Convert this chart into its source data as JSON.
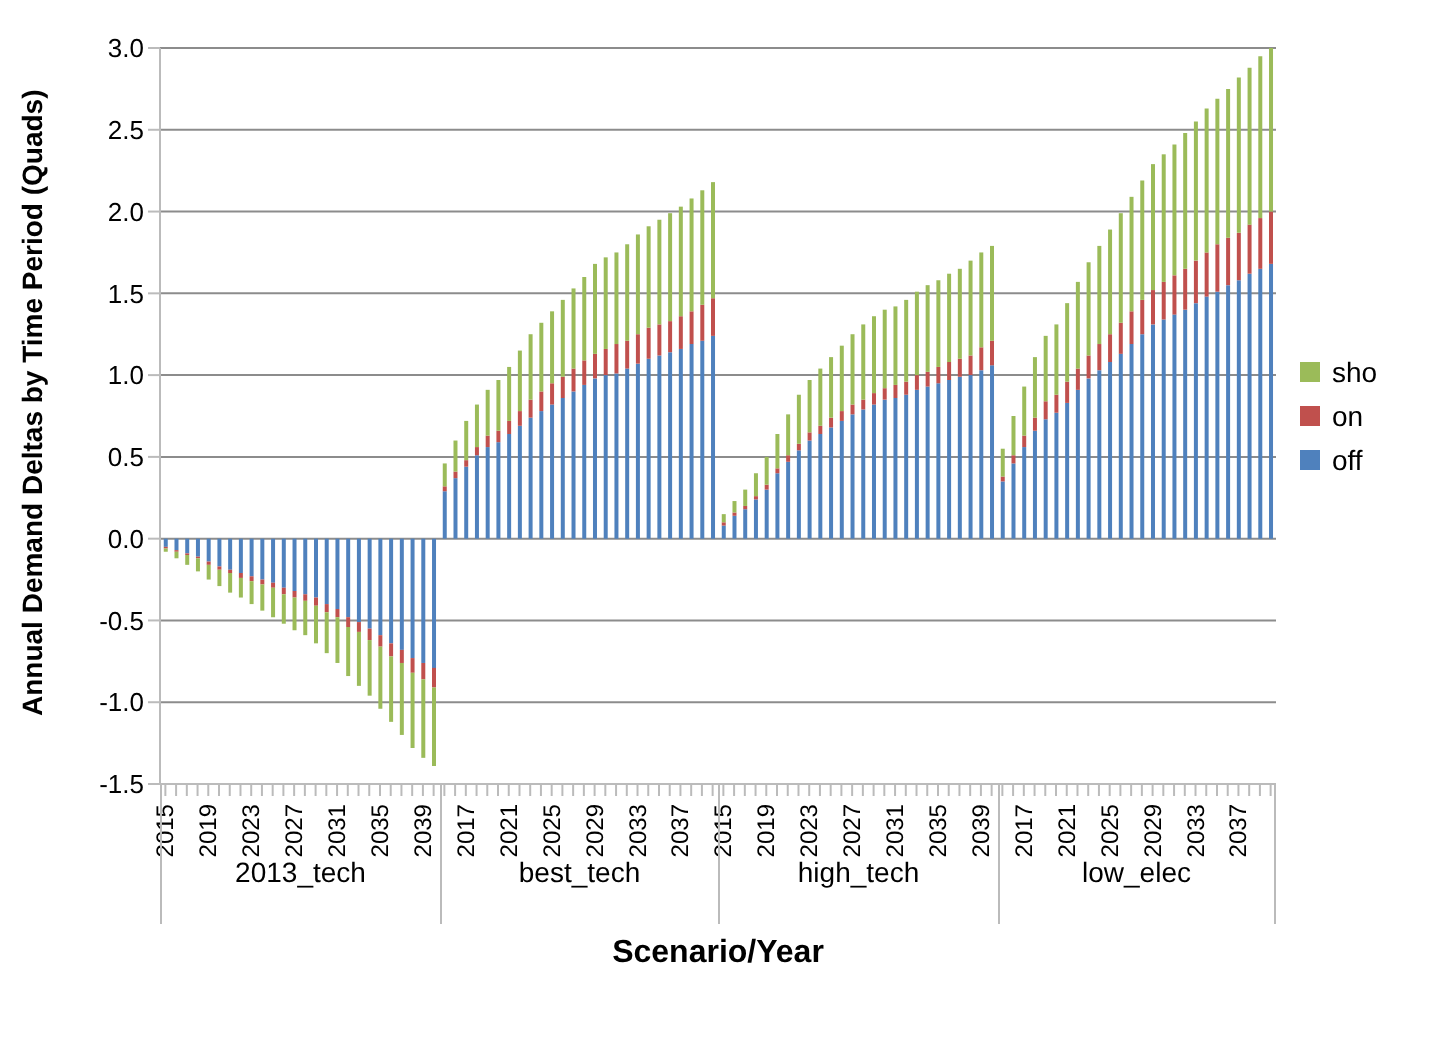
{
  "chart_data": {
    "type": "bar",
    "stacked": true,
    "xlabel": "Scenario/Year",
    "ylabel": "Annual Demand Deltas by Time Period (Quads)",
    "categories": [
      "2015",
      null,
      null,
      null,
      "2019",
      null,
      null,
      null,
      "2023",
      null,
      null,
      null,
      "2027",
      null,
      null,
      null,
      "2031",
      null,
      null,
      null,
      "2035",
      null,
      null,
      null,
      "2039",
      null,
      null,
      null,
      "2017",
      null,
      null,
      null,
      "2021",
      null,
      null,
      null,
      "2025",
      null,
      null,
      null,
      "2029",
      null,
      null,
      null,
      "2033",
      null,
      null,
      null,
      "2037",
      null,
      null,
      null,
      "2015",
      null,
      null,
      null,
      "2019",
      null,
      null,
      null,
      "2023",
      null,
      null,
      null,
      "2027",
      null,
      null,
      null,
      "2031",
      null,
      null,
      null,
      "2035",
      null,
      null,
      null,
      "2039",
      null,
      null,
      null,
      "2017",
      null,
      null,
      null,
      "2021",
      null,
      null,
      null,
      "2025",
      null,
      null,
      null,
      "2029",
      null,
      null,
      null,
      "2033",
      null,
      null,
      null,
      "2037",
      null,
      null,
      null
    ],
    "annotations": [
      "2013_tech",
      "best_tech",
      "high_tech",
      "low_elec"
    ],
    "series": [
      {
        "name": "off",
        "color": "#4f81bd",
        "values": [
          -0.05,
          -0.07,
          -0.09,
          -0.11,
          -0.14,
          -0.17,
          -0.19,
          -0.21,
          -0.23,
          -0.25,
          -0.27,
          -0.3,
          -0.32,
          -0.34,
          -0.36,
          -0.4,
          -0.43,
          -0.48,
          -0.51,
          -0.55,
          -0.59,
          -0.64,
          -0.68,
          -0.73,
          -0.76,
          -0.79,
          0.29,
          0.37,
          0.44,
          0.51,
          0.56,
          0.59,
          0.64,
          0.69,
          0.74,
          0.78,
          0.82,
          0.86,
          0.9,
          0.94,
          0.98,
          1.0,
          1.01,
          1.04,
          1.07,
          1.1,
          1.12,
          1.14,
          1.16,
          1.19,
          1.21,
          1.24,
          0.08,
          0.14,
          0.18,
          0.24,
          0.3,
          0.4,
          0.47,
          0.54,
          0.6,
          0.64,
          0.68,
          0.72,
          0.76,
          0.79,
          0.82,
          0.85,
          0.86,
          0.88,
          0.91,
          0.93,
          0.95,
          0.97,
          0.99,
          1.0,
          1.03,
          1.06,
          0.35,
          0.46,
          0.56,
          0.66,
          0.73,
          0.77,
          0.83,
          0.91,
          0.98,
          1.03,
          1.08,
          1.13,
          1.19,
          1.25,
          1.31,
          1.34,
          1.37,
          1.4,
          1.44,
          1.48,
          1.51,
          1.55,
          1.58,
          1.62,
          1.65,
          1.68
        ]
      },
      {
        "name": "on",
        "color": "#c0504d",
        "values": [
          -0.01,
          -0.01,
          -0.01,
          -0.01,
          -0.02,
          -0.02,
          -0.02,
          -0.03,
          -0.03,
          -0.03,
          -0.03,
          -0.04,
          -0.04,
          -0.04,
          -0.05,
          -0.05,
          -0.05,
          -0.06,
          -0.06,
          -0.07,
          -0.07,
          -0.08,
          -0.08,
          -0.09,
          -0.1,
          -0.12,
          0.03,
          0.04,
          0.04,
          0.05,
          0.07,
          0.07,
          0.08,
          0.09,
          0.11,
          0.12,
          0.13,
          0.13,
          0.14,
          0.15,
          0.15,
          0.16,
          0.18,
          0.17,
          0.18,
          0.19,
          0.19,
          0.19,
          0.2,
          0.2,
          0.22,
          0.23,
          0.02,
          0.02,
          0.02,
          0.02,
          0.03,
          0.03,
          0.04,
          0.04,
          0.05,
          0.05,
          0.06,
          0.06,
          0.06,
          0.06,
          0.07,
          0.07,
          0.08,
          0.08,
          0.09,
          0.09,
          0.1,
          0.11,
          0.11,
          0.12,
          0.14,
          0.15,
          0.03,
          0.05,
          0.07,
          0.08,
          0.11,
          0.11,
          0.13,
          0.13,
          0.14,
          0.16,
          0.17,
          0.19,
          0.2,
          0.21,
          0.21,
          0.23,
          0.24,
          0.25,
          0.26,
          0.27,
          0.29,
          0.29,
          0.29,
          0.3,
          0.31,
          0.32
        ]
      },
      {
        "name": "sho",
        "color": "#9bbb59",
        "values": [
          -0.02,
          -0.04,
          -0.06,
          -0.08,
          -0.09,
          -0.1,
          -0.12,
          -0.12,
          -0.14,
          -0.16,
          -0.18,
          -0.18,
          -0.2,
          -0.21,
          -0.23,
          -0.25,
          -0.28,
          -0.3,
          -0.33,
          -0.34,
          -0.38,
          -0.4,
          -0.44,
          -0.46,
          -0.48,
          -0.48,
          0.14,
          0.19,
          0.24,
          0.26,
          0.28,
          0.31,
          0.33,
          0.37,
          0.4,
          0.42,
          0.44,
          0.47,
          0.49,
          0.51,
          0.55,
          0.56,
          0.56,
          0.59,
          0.61,
          0.62,
          0.64,
          0.66,
          0.67,
          0.69,
          0.7,
          0.71,
          0.05,
          0.07,
          0.1,
          0.14,
          0.17,
          0.21,
          0.25,
          0.3,
          0.32,
          0.35,
          0.37,
          0.4,
          0.43,
          0.46,
          0.47,
          0.48,
          0.48,
          0.5,
          0.51,
          0.53,
          0.53,
          0.54,
          0.55,
          0.58,
          0.58,
          0.58,
          0.17,
          0.24,
          0.3,
          0.37,
          0.4,
          0.43,
          0.48,
          0.53,
          0.57,
          0.6,
          0.64,
          0.67,
          0.7,
          0.73,
          0.77,
          0.78,
          0.8,
          0.83,
          0.85,
          0.88,
          0.89,
          0.91,
          0.95,
          0.96,
          0.99,
          1.0
        ]
      }
    ],
    "ylim": [
      -1.5,
      3
    ],
    "yticks": [
      {
        "value": -1.5,
        "label": "-1.5"
      },
      {
        "value": -1,
        "label": "-1.0"
      },
      {
        "value": -0.5,
        "label": "-0.5"
      },
      {
        "value": 0,
        "label": "0.0"
      },
      {
        "value": 0.5,
        "label": "0.5"
      },
      {
        "value": 1,
        "label": "1.0"
      },
      {
        "value": 1.5,
        "label": "1.5"
      },
      {
        "value": 2,
        "label": "2.0"
      },
      {
        "value": 2.5,
        "label": "2.5"
      },
      {
        "value": 3,
        "label": "3.0"
      }
    ],
    "grid": "y",
    "legend": "right"
  }
}
